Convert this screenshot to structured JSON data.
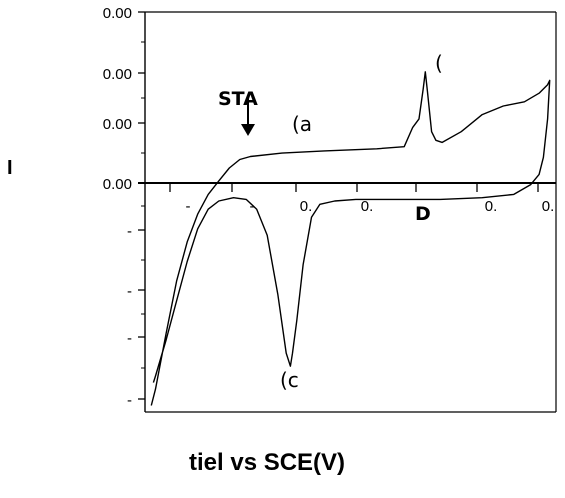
{
  "chart_data": {
    "type": "line",
    "xlabel": "tiel vs SCE(V)",
    "ylabel": "I",
    "grid": false,
    "y_tick_labels": [
      "0.00",
      "0.00",
      "0.00",
      "0.00",
      "-",
      "-",
      "-",
      "-"
    ],
    "x_tick_labels": [
      "-",
      "-",
      "0.",
      "0.",
      "0.",
      "0."
    ],
    "annotations": [
      {
        "text": "STA",
        "role": "start-marker"
      },
      {
        "text": "(a",
        "role": "anodic-peak-label"
      },
      {
        "text": "(",
        "role": "upper-label"
      },
      {
        "text": "(c",
        "role": "cathodic-peak-label"
      },
      {
        "text": "D",
        "role": "axis-fragment"
      }
    ],
    "xlim": [
      -0.75,
      1.2
    ],
    "ylim": [
      -7,
      4
    ],
    "series": [
      {
        "points": [
          [
            -0.72,
            -6.8
          ],
          [
            -0.7,
            -6.3
          ],
          [
            -0.65,
            -4.6
          ],
          [
            -0.6,
            -3.0
          ],
          [
            -0.55,
            -1.8
          ],
          [
            -0.5,
            -0.95
          ],
          [
            -0.45,
            -0.35
          ],
          [
            -0.4,
            0.05
          ],
          [
            -0.35,
            0.35
          ],
          [
            -0.3,
            0.55
          ],
          [
            -0.25,
            0.62
          ],
          [
            -0.1,
            0.7
          ],
          [
            0.1,
            0.75
          ],
          [
            0.35,
            0.8
          ],
          [
            0.48,
            0.85
          ],
          [
            0.52,
            1.3
          ],
          [
            0.55,
            1.5
          ],
          [
            0.57,
            2.2
          ],
          [
            0.58,
            2.6
          ],
          [
            0.59,
            2.15
          ],
          [
            0.61,
            1.2
          ],
          [
            0.63,
            1.0
          ],
          [
            0.66,
            0.95
          ],
          [
            0.75,
            1.2
          ],
          [
            0.85,
            1.6
          ],
          [
            0.95,
            1.8
          ],
          [
            1.05,
            1.9
          ],
          [
            1.12,
            2.1
          ],
          [
            1.16,
            2.3
          ],
          [
            1.17,
            2.4
          ],
          [
            1.16,
            1.5
          ],
          [
            1.14,
            0.6
          ],
          [
            1.12,
            0.2
          ],
          [
            1.08,
            -0.05
          ],
          [
            1.0,
            -0.35
          ],
          [
            0.85,
            -0.45
          ],
          [
            0.65,
            -0.5
          ],
          [
            0.45,
            -0.5
          ],
          [
            0.25,
            -0.5
          ],
          [
            0.15,
            -0.55
          ],
          [
            0.08,
            -0.65
          ],
          [
            0.04,
            -1.05
          ],
          [
            0.0,
            -2.5
          ],
          [
            -0.03,
            -4.2
          ],
          [
            -0.05,
            -5.2
          ],
          [
            -0.06,
            -5.6
          ],
          [
            -0.08,
            -5.2
          ],
          [
            -0.12,
            -3.4
          ],
          [
            -0.17,
            -1.6
          ],
          [
            -0.22,
            -0.8
          ],
          [
            -0.27,
            -0.5
          ],
          [
            -0.33,
            -0.45
          ],
          [
            -0.4,
            -0.55
          ],
          [
            -0.45,
            -0.8
          ],
          [
            -0.5,
            -1.4
          ],
          [
            -0.55,
            -2.4
          ],
          [
            -0.6,
            -3.6
          ],
          [
            -0.65,
            -4.8
          ],
          [
            -0.7,
            -5.9
          ],
          [
            -0.71,
            -6.1
          ]
        ]
      }
    ]
  }
}
